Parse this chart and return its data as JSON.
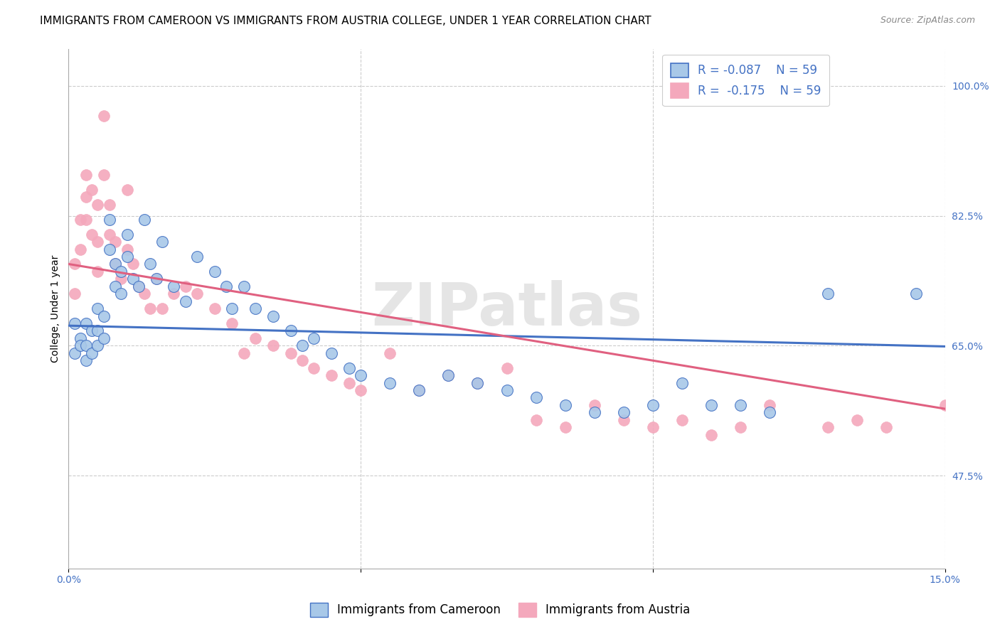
{
  "title": "IMMIGRANTS FROM CAMEROON VS IMMIGRANTS FROM AUSTRIA COLLEGE, UNDER 1 YEAR CORRELATION CHART",
  "source": "Source: ZipAtlas.com",
  "ylabel": "College, Under 1 year",
  "xlim": [
    0.0,
    0.15
  ],
  "ylim": [
    0.35,
    1.05
  ],
  "yticks_right": [
    0.475,
    0.65,
    0.825,
    1.0
  ],
  "yticklabels_right": [
    "47.5%",
    "65.0%",
    "82.5%",
    "100.0%"
  ],
  "R_cameroon": -0.087,
  "R_austria": -0.175,
  "N_cameroon": 59,
  "N_austria": 59,
  "color_cameroon": "#a8c8e8",
  "color_austria": "#f4a8bc",
  "line_color_cameroon": "#4472c4",
  "line_color_austria": "#e06080",
  "legend_label_cameroon": "Immigrants from Cameroon",
  "legend_label_austria": "Immigrants from Austria",
  "watermark": "ZIPatlas",
  "background_color": "#ffffff",
  "grid_color": "#cccccc",
  "title_fontsize": 11,
  "axis_label_fontsize": 10,
  "tick_fontsize": 10,
  "cameroon_x": [
    0.001,
    0.001,
    0.002,
    0.002,
    0.003,
    0.003,
    0.003,
    0.004,
    0.004,
    0.005,
    0.005,
    0.005,
    0.006,
    0.006,
    0.007,
    0.007,
    0.008,
    0.008,
    0.009,
    0.009,
    0.01,
    0.01,
    0.011,
    0.012,
    0.013,
    0.014,
    0.015,
    0.016,
    0.018,
    0.02,
    0.022,
    0.025,
    0.027,
    0.028,
    0.03,
    0.032,
    0.035,
    0.038,
    0.04,
    0.042,
    0.045,
    0.048,
    0.05,
    0.055,
    0.06,
    0.065,
    0.07,
    0.075,
    0.08,
    0.085,
    0.09,
    0.095,
    0.1,
    0.105,
    0.11,
    0.115,
    0.12,
    0.13,
    0.145
  ],
  "cameroon_y": [
    0.68,
    0.64,
    0.66,
    0.65,
    0.68,
    0.65,
    0.63,
    0.67,
    0.64,
    0.7,
    0.67,
    0.65,
    0.69,
    0.66,
    0.82,
    0.78,
    0.76,
    0.73,
    0.75,
    0.72,
    0.8,
    0.77,
    0.74,
    0.73,
    0.82,
    0.76,
    0.74,
    0.79,
    0.73,
    0.71,
    0.77,
    0.75,
    0.73,
    0.7,
    0.73,
    0.7,
    0.69,
    0.67,
    0.65,
    0.66,
    0.64,
    0.62,
    0.61,
    0.6,
    0.59,
    0.61,
    0.6,
    0.59,
    0.58,
    0.57,
    0.56,
    0.56,
    0.57,
    0.6,
    0.57,
    0.57,
    0.56,
    0.72,
    0.72
  ],
  "austria_x": [
    0.001,
    0.001,
    0.002,
    0.002,
    0.003,
    0.003,
    0.003,
    0.004,
    0.004,
    0.005,
    0.005,
    0.005,
    0.006,
    0.006,
    0.007,
    0.007,
    0.008,
    0.008,
    0.009,
    0.01,
    0.01,
    0.011,
    0.012,
    0.013,
    0.014,
    0.015,
    0.016,
    0.018,
    0.02,
    0.022,
    0.025,
    0.028,
    0.03,
    0.032,
    0.035,
    0.038,
    0.04,
    0.042,
    0.045,
    0.048,
    0.05,
    0.055,
    0.06,
    0.065,
    0.07,
    0.075,
    0.08,
    0.085,
    0.09,
    0.095,
    0.1,
    0.105,
    0.11,
    0.115,
    0.12,
    0.13,
    0.135,
    0.14,
    0.15
  ],
  "austria_y": [
    0.76,
    0.72,
    0.82,
    0.78,
    0.88,
    0.85,
    0.82,
    0.86,
    0.8,
    0.84,
    0.79,
    0.75,
    0.96,
    0.88,
    0.84,
    0.8,
    0.79,
    0.76,
    0.74,
    0.86,
    0.78,
    0.76,
    0.73,
    0.72,
    0.7,
    0.74,
    0.7,
    0.72,
    0.73,
    0.72,
    0.7,
    0.68,
    0.64,
    0.66,
    0.65,
    0.64,
    0.63,
    0.62,
    0.61,
    0.6,
    0.59,
    0.64,
    0.59,
    0.61,
    0.6,
    0.62,
    0.55,
    0.54,
    0.57,
    0.55,
    0.54,
    0.55,
    0.53,
    0.54,
    0.57,
    0.54,
    0.55,
    0.54,
    0.57
  ],
  "trend_cam_y0": 0.677,
  "trend_cam_y1": 0.649,
  "trend_aut_y0": 0.76,
  "trend_aut_y1": 0.565
}
